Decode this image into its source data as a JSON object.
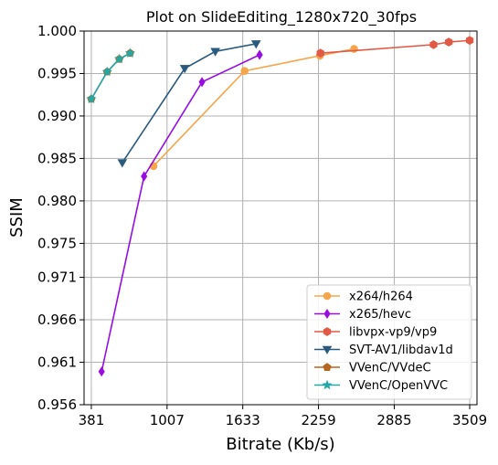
{
  "chart_data": {
    "type": "line",
    "title": "Plot on SlideEditing_1280x720_30fps",
    "xlabel": "Bitrate (Kb/s)",
    "ylabel": "SSIM",
    "xlim": [
      321,
      3569
    ],
    "ylim": [
      0.956,
      1.0
    ],
    "x_ticks": [
      381,
      1007,
      1633,
      2259,
      2885,
      3509
    ],
    "x_tick_labels": [
      "381",
      "1007",
      "1633",
      "2259",
      "2885",
      "3509"
    ],
    "y_ticks": [
      0.956,
      0.961,
      0.966,
      0.971,
      0.975,
      0.98,
      0.985,
      0.99,
      0.995,
      1.0
    ],
    "y_tick_labels": [
      "0.956",
      "0.961",
      "0.966",
      "0.971",
      "0.975",
      "0.980",
      "0.985",
      "0.990",
      "0.995",
      "1.000"
    ],
    "grid": true,
    "legend_position": "lower-right",
    "series": [
      {
        "name": "x264/h264",
        "color": "#f5a54a",
        "marker": "circle",
        "x": [
          895,
          1648,
          2271,
          2553
        ],
        "y": [
          0.9841,
          0.9953,
          0.9971,
          0.9979
        ]
      },
      {
        "name": "x265/hevc",
        "color": "#9a0de0",
        "marker": "thin-diamond",
        "x": [
          466,
          817,
          1296,
          1772
        ],
        "y": [
          0.9599,
          0.9829,
          0.994,
          0.9972
        ]
      },
      {
        "name": "libvpx-vp9/vp9",
        "color": "#e05a45",
        "marker": "hexagon",
        "x": [
          2275,
          3210,
          3336,
          3509
        ],
        "y": [
          0.9974,
          0.9984,
          0.9987,
          0.9989
        ]
      },
      {
        "name": "SVT-AV1/libdav1d",
        "color": "#2a5a7e",
        "marker": "triangle-down",
        "x": [
          637,
          1153,
          1406,
          1743
        ],
        "y": [
          0.9845,
          0.9956,
          0.9976,
          0.9985
        ]
      },
      {
        "name": "VVenC/VVdeC",
        "color": "#b5651d",
        "marker": "pentagon",
        "x": [
          381,
          512,
          612,
          702
        ],
        "y": [
          0.992,
          0.9952,
          0.9967,
          0.9974
        ]
      },
      {
        "name": "VVenC/OpenVVC",
        "color": "#23a8a8",
        "marker": "star",
        "x": [
          381,
          512,
          612,
          702
        ],
        "y": [
          0.992,
          0.9952,
          0.9967,
          0.9974
        ]
      }
    ]
  }
}
